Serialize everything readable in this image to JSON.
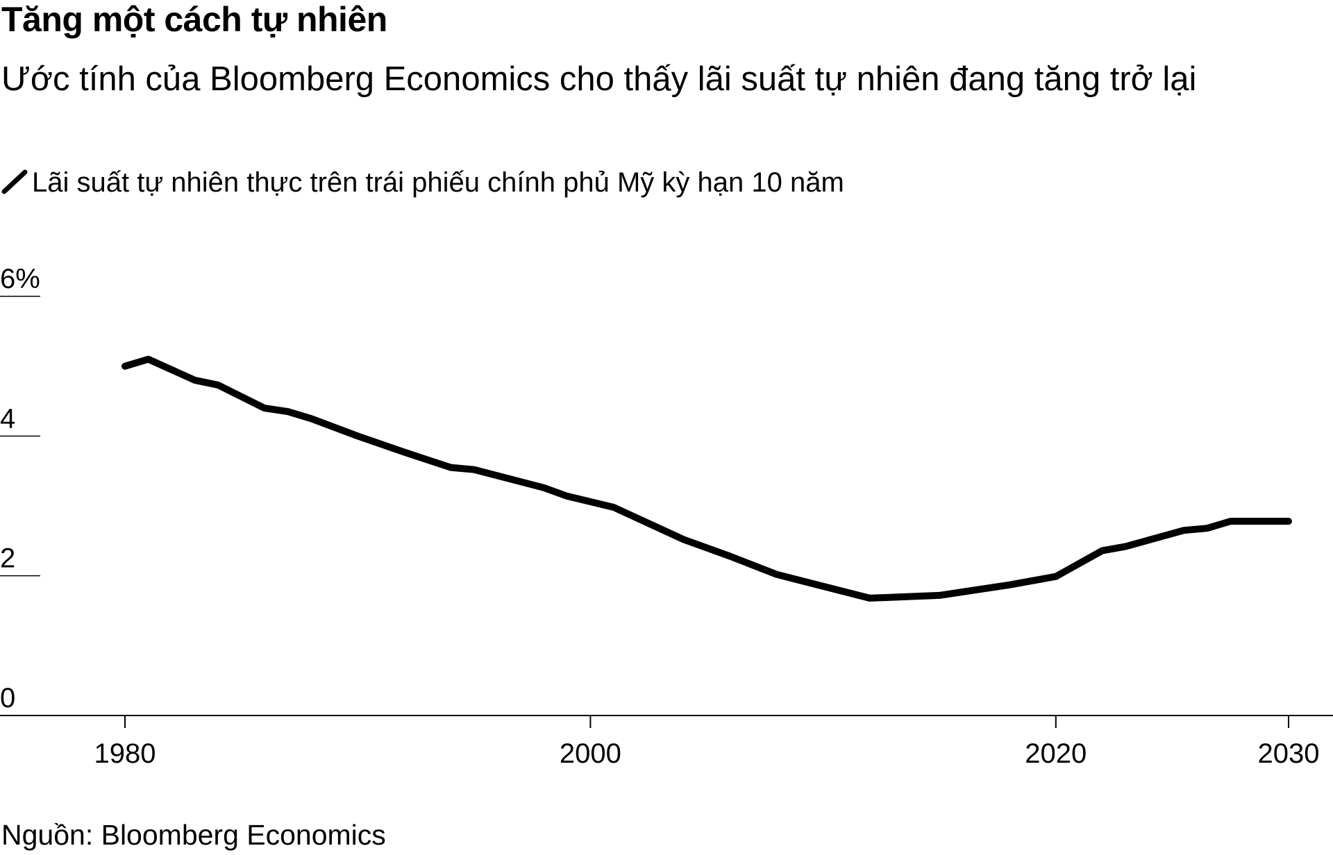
{
  "header": {
    "title": "Tăng một cách tự nhiên",
    "subtitle": "Ước tính của Bloomberg Economics cho thấy lãi suất tự nhiên đang tăng trở lại"
  },
  "legend": {
    "label": "Lãi suất tự nhiên thực trên trái phiếu chính phủ Mỹ kỳ hạn 10 năm",
    "icon": "line-swatch-icon"
  },
  "footer": {
    "source": "Nguồn: Bloomberg Economics"
  },
  "colors": {
    "line": "#000000",
    "axis": "#000000",
    "background": "#ffffff"
  },
  "chart_data": {
    "type": "line",
    "title": "Tăng một cách tự nhiên",
    "subtitle": "Ước tính của Bloomberg Economics cho thấy lãi suất tự nhiên đang tăng trở lại",
    "xlabel": "",
    "ylabel": "",
    "xlim": [
      1975,
      2032
    ],
    "ylim": [
      0,
      6
    ],
    "x_ticks": [
      1980,
      2000,
      2020,
      2030
    ],
    "y_ticks": [
      0,
      2,
      4,
      6
    ],
    "y_tick_labels": [
      "0",
      "2",
      "4",
      "6%"
    ],
    "grid": false,
    "legend_position": "top-left",
    "series": [
      {
        "name": "Lãi suất tự nhiên thực trên trái phiếu chính phủ Mỹ kỳ hạn 10 năm",
        "x": [
          1980,
          1981,
          1983,
          1984,
          1986,
          1987,
          1988,
          1990,
          1992,
          1994,
          1995,
          1998,
          1999,
          2001,
          2004,
          2006,
          2008,
          2012,
          2015,
          2018,
          2020,
          2022,
          2023,
          2025.5,
          2026.5,
          2027.5,
          2030
        ],
        "values": [
          5.0,
          5.1,
          4.8,
          4.73,
          4.4,
          4.35,
          4.25,
          4.0,
          3.77,
          3.55,
          3.52,
          3.26,
          3.14,
          2.98,
          2.52,
          2.28,
          2.02,
          1.68,
          1.72,
          1.87,
          1.99,
          2.36,
          2.42,
          2.65,
          2.68,
          2.78,
          2.78
        ]
      }
    ]
  }
}
